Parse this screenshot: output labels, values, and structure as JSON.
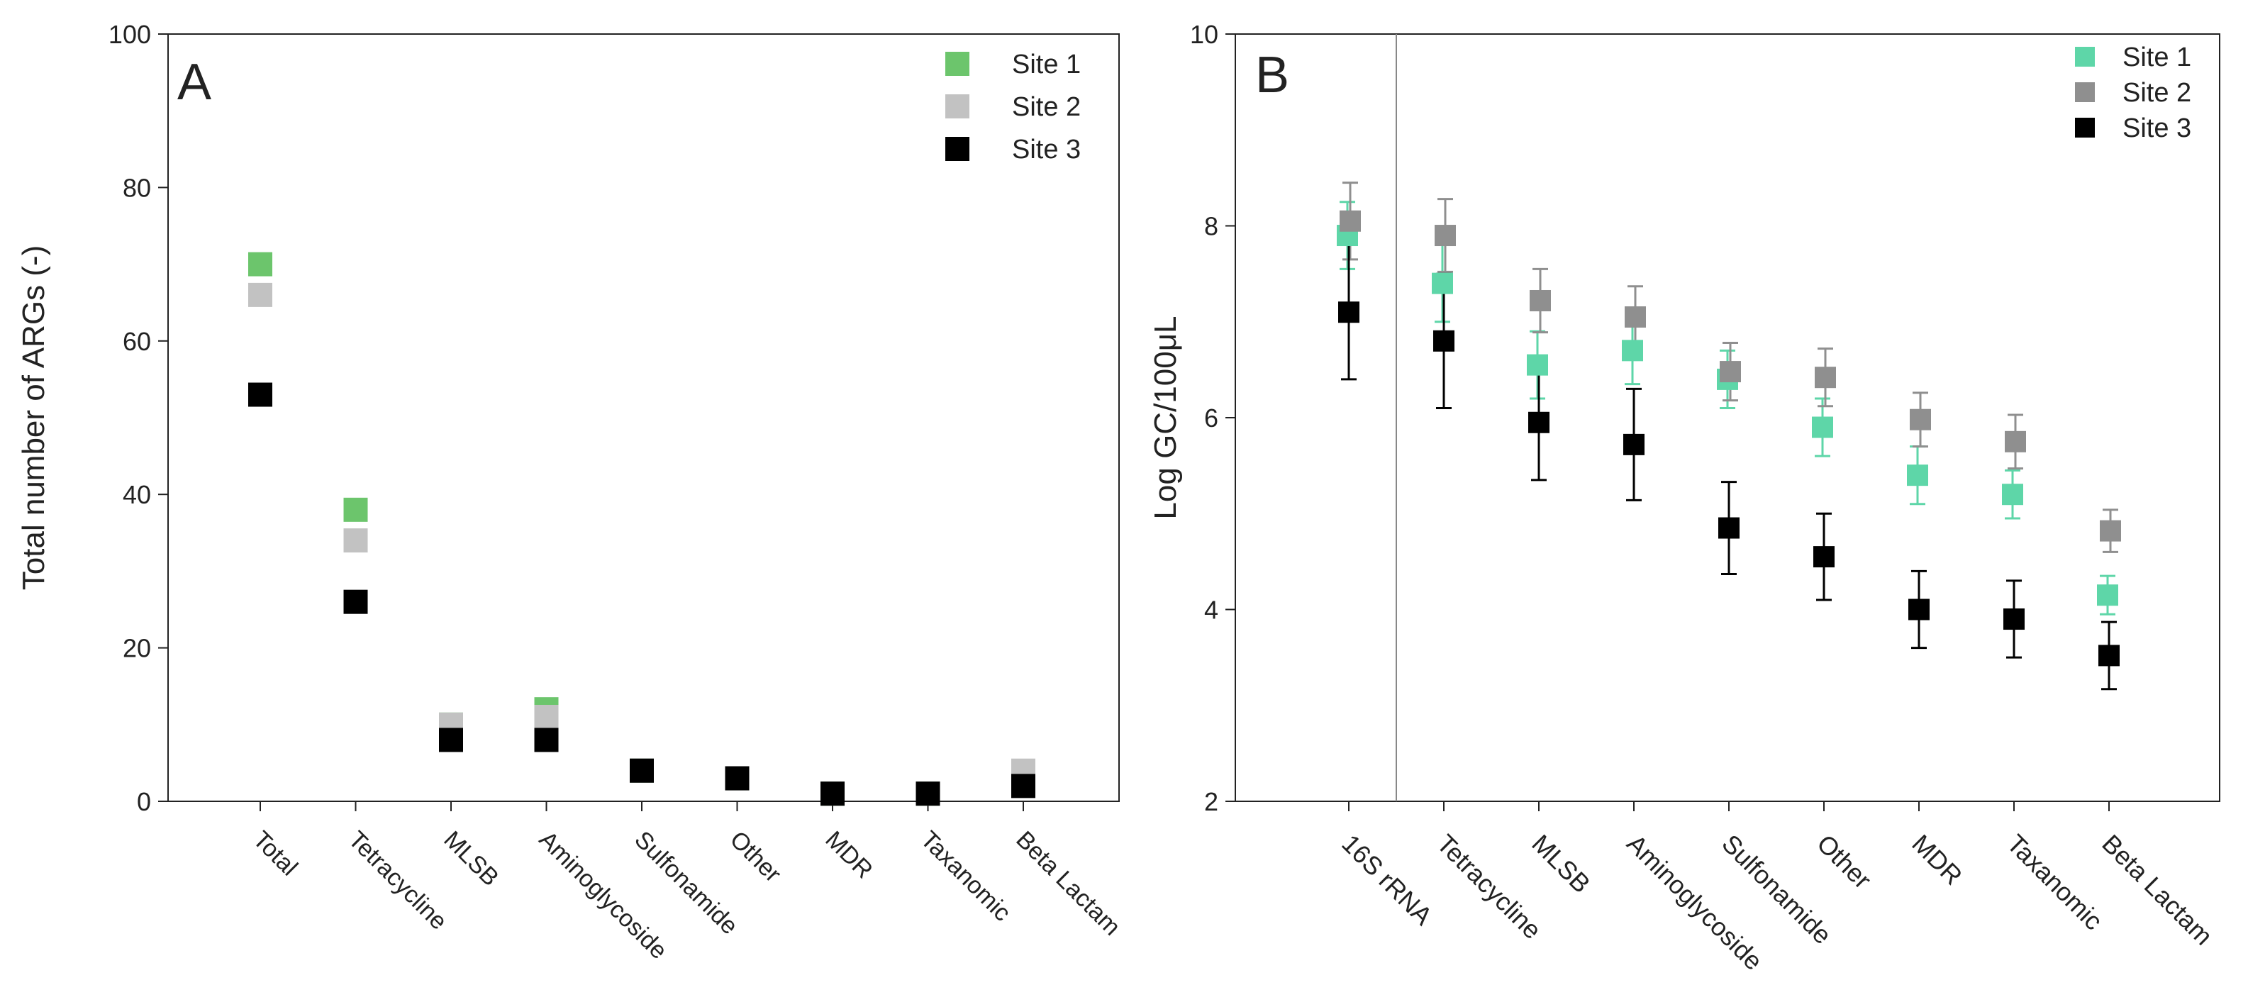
{
  "chart_data": [
    {
      "type": "scatter",
      "panel_label": "A",
      "ylabel": "Total number of ARGs (-)",
      "xlabel": "",
      "ylim": [
        0,
        100
      ],
      "yticks": [
        0,
        20,
        40,
        60,
        80,
        100
      ],
      "categories": [
        "Total",
        "Tetracycline",
        "MLSB",
        "Aminoglycoside",
        "Sulfonamide",
        "Other",
        "MDR",
        "Taxanomic",
        "Beta Lactam"
      ],
      "legend_position": "top-right",
      "series": [
        {
          "name": "Site 1",
          "color": "#6cc56c",
          "values": [
            70,
            38,
            10,
            12,
            4,
            3,
            1,
            1,
            3
          ]
        },
        {
          "name": "Site 2",
          "color": "#c2c2c2",
          "values": [
            66,
            34,
            10,
            11,
            4,
            3,
            1,
            1,
            4
          ]
        },
        {
          "name": "Site 3",
          "color": "#000000",
          "values": [
            53,
            26,
            8,
            8,
            4,
            3,
            1,
            1,
            2
          ]
        }
      ]
    },
    {
      "type": "scatter",
      "panel_label": "B",
      "ylabel": "Log GC/100μL",
      "xlabel": "",
      "ylim": [
        2,
        10
      ],
      "yticks": [
        2,
        4,
        6,
        8,
        10
      ],
      "categories": [
        "16S rRNA",
        "Tetracycline",
        "MLSB",
        "Aminoglycoside",
        "Sulfonamide",
        "Other",
        "MDR",
        "Taxanomic",
        "Beta Lactam"
      ],
      "separator_after": "16S rRNA",
      "legend_position": "top-right",
      "series": [
        {
          "name": "Site 1",
          "color": "#5ed6a8",
          "values": [
            7.9,
            7.4,
            6.55,
            6.7,
            6.4,
            5.9,
            5.4,
            5.2,
            4.15
          ],
          "errors": [
            0.35,
            0.4,
            0.35,
            0.35,
            0.3,
            0.3,
            0.3,
            0.25,
            0.2
          ]
        },
        {
          "name": "Site 2",
          "color": "#8f8f8f",
          "values": [
            8.05,
            7.9,
            7.22,
            7.05,
            6.48,
            6.42,
            5.98,
            5.75,
            4.82
          ],
          "errors": [
            0.4,
            0.38,
            0.33,
            0.32,
            0.3,
            0.3,
            0.28,
            0.28,
            0.22
          ]
        },
        {
          "name": "Site 3",
          "color": "#000000",
          "values": [
            7.1,
            6.8,
            5.95,
            5.72,
            4.85,
            4.55,
            4.0,
            3.9,
            3.52
          ],
          "errors": [
            0.7,
            0.7,
            0.6,
            0.58,
            0.48,
            0.45,
            0.4,
            0.4,
            0.35
          ]
        }
      ]
    }
  ]
}
